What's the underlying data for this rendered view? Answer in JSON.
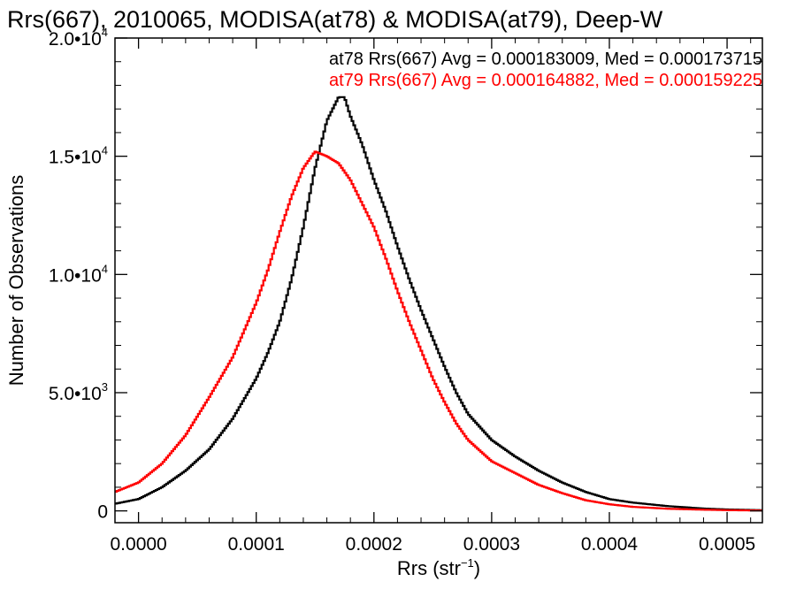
{
  "chart_data": {
    "type": "histogram",
    "title": "Rrs(667), 2010065, MODISA(at78) & MODISA(at79), Deep-W",
    "xlabel": "Rrs (str",
    "xlabel_sup": "−1",
    "xlabel_tail": ")",
    "ylabel": "Number of Observations",
    "xlim": [
      -2e-05,
      0.00053
    ],
    "ylim": [
      -500,
      20000
    ],
    "x_ticks": [
      0.0,
      0.0001,
      0.0002,
      0.0003,
      0.0004,
      0.0005
    ],
    "x_tick_labels": [
      "0.0000",
      "0.0001",
      "0.0002",
      "0.0003",
      "0.0004",
      "0.0005"
    ],
    "y_ticks": [
      {
        "value": 0,
        "mantissa": "0",
        "exp": ""
      },
      {
        "value": 5000,
        "mantissa": "5.0•10",
        "exp": "3"
      },
      {
        "value": 10000,
        "mantissa": "1.0•10",
        "exp": "4"
      },
      {
        "value": 15000,
        "mantissa": "1.5•10",
        "exp": "4"
      },
      {
        "value": 20000,
        "mantissa": "2.0•10",
        "exp": "4"
      }
    ],
    "series": [
      {
        "name": "at78",
        "color": "#000000",
        "stat_text": "at78 Rrs(667) Avg = 0.000183009, Med = 0.000173715",
        "points": [
          [
            -2e-05,
            300
          ],
          [
            0.0,
            500
          ],
          [
            2e-05,
            1000
          ],
          [
            4e-05,
            1700
          ],
          [
            6e-05,
            2600
          ],
          [
            8e-05,
            3900
          ],
          [
            0.0001,
            5600
          ],
          [
            0.00011,
            6700
          ],
          [
            0.00012,
            8000
          ],
          [
            0.00013,
            9800
          ],
          [
            0.00014,
            12000
          ],
          [
            0.00015,
            14500
          ],
          [
            0.00016,
            16500
          ],
          [
            0.00017,
            17500
          ],
          [
            0.000175,
            17500
          ],
          [
            0.00018,
            16700
          ],
          [
            0.00019,
            15500
          ],
          [
            0.0002,
            14000
          ],
          [
            0.00021,
            12700
          ],
          [
            0.00022,
            11200
          ],
          [
            0.00023,
            9800
          ],
          [
            0.00024,
            8500
          ],
          [
            0.00025,
            7300
          ],
          [
            0.00026,
            6100
          ],
          [
            0.00027,
            5000
          ],
          [
            0.00028,
            4100
          ],
          [
            0.0003,
            3000
          ],
          [
            0.00032,
            2300
          ],
          [
            0.00034,
            1700
          ],
          [
            0.00036,
            1200
          ],
          [
            0.00038,
            800
          ],
          [
            0.0004,
            500
          ],
          [
            0.00042,
            350
          ],
          [
            0.00045,
            200
          ],
          [
            0.00048,
            100
          ],
          [
            0.0005,
            60
          ],
          [
            0.00053,
            30
          ]
        ]
      },
      {
        "name": "at79",
        "color": "#ff0000",
        "stat_text": "at79 Rrs(667) Avg = 0.000164882, Med = 0.000159225",
        "points": [
          [
            -2e-05,
            800
          ],
          [
            0.0,
            1200
          ],
          [
            2e-05,
            2000
          ],
          [
            4e-05,
            3200
          ],
          [
            6e-05,
            4800
          ],
          [
            8e-05,
            6500
          ],
          [
            0.0001,
            8800
          ],
          [
            0.00011,
            10200
          ],
          [
            0.00012,
            11800
          ],
          [
            0.00013,
            13300
          ],
          [
            0.00014,
            14500
          ],
          [
            0.00015,
            15200
          ],
          [
            0.00016,
            15000
          ],
          [
            0.00017,
            14700
          ],
          [
            0.00018,
            14000
          ],
          [
            0.00019,
            13000
          ],
          [
            0.0002,
            12000
          ],
          [
            0.00021,
            10700
          ],
          [
            0.00022,
            9300
          ],
          [
            0.00023,
            8000
          ],
          [
            0.00024,
            6800
          ],
          [
            0.00025,
            5600
          ],
          [
            0.00026,
            4600
          ],
          [
            0.00027,
            3700
          ],
          [
            0.00028,
            3000
          ],
          [
            0.0003,
            2100
          ],
          [
            0.00032,
            1600
          ],
          [
            0.00034,
            1100
          ],
          [
            0.00036,
            750
          ],
          [
            0.00038,
            450
          ],
          [
            0.0004,
            280
          ],
          [
            0.00042,
            170
          ],
          [
            0.00045,
            90
          ],
          [
            0.00048,
            50
          ],
          [
            0.0005,
            30
          ],
          [
            0.00053,
            15
          ]
        ]
      }
    ]
  }
}
